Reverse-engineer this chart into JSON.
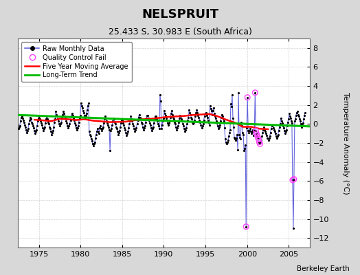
{
  "title": "NELSPRUIT",
  "subtitle": "25.433 S, 30.983 E (South Africa)",
  "ylabel": "Temperature Anomaly (°C)",
  "attribution": "Berkeley Earth",
  "ylim": [
    -13,
    9
  ],
  "yticks": [
    -12,
    -10,
    -8,
    -6,
    -4,
    -2,
    0,
    2,
    4,
    6,
    8
  ],
  "xlim": [
    1972.5,
    2007.5
  ],
  "xticks": [
    1975,
    1980,
    1985,
    1990,
    1995,
    2000,
    2005
  ],
  "bg_color": "#d8d8d8",
  "plot_bg_color": "#ffffff",
  "grid_color": "#c8c8c8",
  "raw_color": "#6666dd",
  "raw_dot_color": "#000000",
  "qc_fail_color": "#ff44ff",
  "moving_avg_color": "#ff0000",
  "trend_color": "#00bb00",
  "raw_monthly": [
    [
      1972.042,
      0.7
    ],
    [
      1972.125,
      0.4
    ],
    [
      1972.208,
      0.3
    ],
    [
      1972.292,
      0.0
    ],
    [
      1972.375,
      -0.1
    ],
    [
      1972.458,
      -0.5
    ],
    [
      1972.542,
      -0.5
    ],
    [
      1972.625,
      -0.3
    ],
    [
      1972.708,
      -0.2
    ],
    [
      1972.792,
      0.3
    ],
    [
      1972.875,
      0.7
    ],
    [
      1972.958,
      0.8
    ],
    [
      1973.042,
      0.6
    ],
    [
      1973.125,
      0.4
    ],
    [
      1973.208,
      0.2
    ],
    [
      1973.292,
      -0.1
    ],
    [
      1973.375,
      -0.3
    ],
    [
      1973.458,
      -0.6
    ],
    [
      1973.542,
      -0.9
    ],
    [
      1973.625,
      -0.7
    ],
    [
      1973.708,
      -0.5
    ],
    [
      1973.792,
      0.0
    ],
    [
      1973.875,
      0.4
    ],
    [
      1973.958,
      0.7
    ],
    [
      1974.042,
      0.5
    ],
    [
      1974.125,
      0.2
    ],
    [
      1974.208,
      0.0
    ],
    [
      1974.292,
      -0.2
    ],
    [
      1974.375,
      -0.4
    ],
    [
      1974.458,
      -0.7
    ],
    [
      1974.542,
      -1.0
    ],
    [
      1974.625,
      -0.8
    ],
    [
      1974.708,
      -0.6
    ],
    [
      1974.792,
      -0.2
    ],
    [
      1974.875,
      0.3
    ],
    [
      1974.958,
      0.6
    ],
    [
      1975.042,
      0.8
    ],
    [
      1975.125,
      0.5
    ],
    [
      1975.208,
      0.3
    ],
    [
      1975.292,
      0.1
    ],
    [
      1975.375,
      -0.1
    ],
    [
      1975.458,
      -0.4
    ],
    [
      1975.542,
      -0.7
    ],
    [
      1975.625,
      -0.5
    ],
    [
      1975.708,
      -0.3
    ],
    [
      1975.792,
      0.1
    ],
    [
      1975.875,
      0.5
    ],
    [
      1975.958,
      0.8
    ],
    [
      1976.042,
      0.5
    ],
    [
      1976.125,
      0.2
    ],
    [
      1976.208,
      0.0
    ],
    [
      1976.292,
      -0.3
    ],
    [
      1976.375,
      -0.5
    ],
    [
      1976.458,
      -0.8
    ],
    [
      1976.542,
      -1.1
    ],
    [
      1976.625,
      -0.9
    ],
    [
      1976.708,
      -0.7
    ],
    [
      1976.792,
      -0.3
    ],
    [
      1976.875,
      0.2
    ],
    [
      1976.958,
      0.5
    ],
    [
      1977.042,
      1.3
    ],
    [
      1977.125,
      1.0
    ],
    [
      1977.208,
      0.8
    ],
    [
      1977.292,
      0.5
    ],
    [
      1977.375,
      0.3
    ],
    [
      1977.458,
      0.0
    ],
    [
      1977.542,
      -0.2
    ],
    [
      1977.625,
      0.0
    ],
    [
      1977.708,
      0.2
    ],
    [
      1977.792,
      0.6
    ],
    [
      1977.875,
      1.0
    ],
    [
      1977.958,
      1.3
    ],
    [
      1978.042,
      1.1
    ],
    [
      1978.125,
      0.8
    ],
    [
      1978.208,
      0.6
    ],
    [
      1978.292,
      0.3
    ],
    [
      1978.375,
      0.1
    ],
    [
      1978.458,
      -0.2
    ],
    [
      1978.542,
      -0.4
    ],
    [
      1978.625,
      -0.2
    ],
    [
      1978.708,
      0.0
    ],
    [
      1978.792,
      0.4
    ],
    [
      1978.875,
      0.8
    ],
    [
      1978.958,
      1.1
    ],
    [
      1979.042,
      0.9
    ],
    [
      1979.125,
      0.6
    ],
    [
      1979.208,
      0.4
    ],
    [
      1979.292,
      0.1
    ],
    [
      1979.375,
      -0.1
    ],
    [
      1979.458,
      -0.4
    ],
    [
      1979.542,
      -0.6
    ],
    [
      1979.625,
      -0.4
    ],
    [
      1979.708,
      -0.2
    ],
    [
      1979.792,
      0.2
    ],
    [
      1979.875,
      0.6
    ],
    [
      1979.958,
      0.9
    ],
    [
      1980.042,
      2.2
    ],
    [
      1980.125,
      1.9
    ],
    [
      1980.208,
      1.7
    ],
    [
      1980.292,
      1.4
    ],
    [
      1980.375,
      1.2
    ],
    [
      1980.458,
      0.9
    ],
    [
      1980.542,
      0.7
    ],
    [
      1980.625,
      0.9
    ],
    [
      1980.708,
      1.1
    ],
    [
      1980.792,
      1.5
    ],
    [
      1980.875,
      1.9
    ],
    [
      1980.958,
      2.2
    ],
    [
      1981.042,
      -0.8
    ],
    [
      1981.125,
      -1.1
    ],
    [
      1981.208,
      -1.3
    ],
    [
      1981.292,
      -1.6
    ],
    [
      1981.375,
      -1.8
    ],
    [
      1981.458,
      -2.1
    ],
    [
      1981.542,
      -2.3
    ],
    [
      1981.625,
      -2.1
    ],
    [
      1981.708,
      -1.9
    ],
    [
      1981.792,
      -1.5
    ],
    [
      1981.875,
      -1.1
    ],
    [
      1981.958,
      -0.8
    ],
    [
      1982.042,
      -0.5
    ],
    [
      1982.125,
      -0.8
    ],
    [
      1982.208,
      -1.0
    ],
    [
      1982.292,
      -0.4
    ],
    [
      1982.375,
      -0.2
    ],
    [
      1982.458,
      -0.5
    ],
    [
      1982.542,
      -0.7
    ],
    [
      1982.625,
      -0.5
    ],
    [
      1982.708,
      -0.3
    ],
    [
      1982.792,
      0.1
    ],
    [
      1982.875,
      0.5
    ],
    [
      1982.958,
      0.8
    ],
    [
      1983.042,
      0.6
    ],
    [
      1983.125,
      0.3
    ],
    [
      1983.208,
      0.1
    ],
    [
      1983.292,
      -0.1
    ],
    [
      1983.375,
      -0.3
    ],
    [
      1983.458,
      -0.6
    ],
    [
      1983.542,
      -2.8
    ],
    [
      1983.625,
      -0.7
    ],
    [
      1983.708,
      -0.5
    ],
    [
      1983.792,
      -0.1
    ],
    [
      1983.875,
      0.3
    ],
    [
      1983.958,
      0.6
    ],
    [
      1984.042,
      0.5
    ],
    [
      1984.125,
      0.2
    ],
    [
      1984.208,
      0.0
    ],
    [
      1984.292,
      -0.3
    ],
    [
      1984.375,
      -0.5
    ],
    [
      1984.458,
      -0.8
    ],
    [
      1984.542,
      -1.1
    ],
    [
      1984.625,
      -0.9
    ],
    [
      1984.708,
      -0.7
    ],
    [
      1984.792,
      -0.3
    ],
    [
      1984.875,
      0.1
    ],
    [
      1984.958,
      0.4
    ],
    [
      1985.042,
      0.4
    ],
    [
      1985.125,
      0.1
    ],
    [
      1985.208,
      -0.1
    ],
    [
      1985.292,
      -0.4
    ],
    [
      1985.375,
      -0.6
    ],
    [
      1985.458,
      -0.9
    ],
    [
      1985.542,
      -1.2
    ],
    [
      1985.625,
      -1.0
    ],
    [
      1985.708,
      -0.8
    ],
    [
      1985.792,
      -0.4
    ],
    [
      1985.875,
      0.0
    ],
    [
      1985.958,
      0.3
    ],
    [
      1986.042,
      0.8
    ],
    [
      1986.125,
      0.5
    ],
    [
      1986.208,
      0.3
    ],
    [
      1986.292,
      0.0
    ],
    [
      1986.375,
      -0.2
    ],
    [
      1986.458,
      -0.5
    ],
    [
      1986.542,
      -0.8
    ],
    [
      1986.625,
      -0.6
    ],
    [
      1986.708,
      -0.4
    ],
    [
      1986.792,
      0.0
    ],
    [
      1986.875,
      0.4
    ],
    [
      1986.958,
      0.7
    ],
    [
      1987.042,
      1.0
    ],
    [
      1987.125,
      0.7
    ],
    [
      1987.208,
      0.5
    ],
    [
      1987.292,
      0.2
    ],
    [
      1987.375,
      0.0
    ],
    [
      1987.458,
      -0.3
    ],
    [
      1987.542,
      -0.6
    ],
    [
      1987.625,
      -0.4
    ],
    [
      1987.708,
      -0.2
    ],
    [
      1987.792,
      0.2
    ],
    [
      1987.875,
      0.6
    ],
    [
      1987.958,
      0.9
    ],
    [
      1988.042,
      0.9
    ],
    [
      1988.125,
      0.6
    ],
    [
      1988.208,
      0.4
    ],
    [
      1988.292,
      0.1
    ],
    [
      1988.375,
      -0.1
    ],
    [
      1988.458,
      -0.4
    ],
    [
      1988.542,
      -0.7
    ],
    [
      1988.625,
      -0.5
    ],
    [
      1988.708,
      -0.3
    ],
    [
      1988.792,
      0.1
    ],
    [
      1988.875,
      0.5
    ],
    [
      1988.958,
      0.8
    ],
    [
      1989.042,
      0.8
    ],
    [
      1989.125,
      0.5
    ],
    [
      1989.208,
      0.3
    ],
    [
      1989.292,
      0.0
    ],
    [
      1989.375,
      -0.2
    ],
    [
      1989.458,
      -0.5
    ],
    [
      1989.542,
      3.1
    ],
    [
      1989.625,
      2.4
    ],
    [
      1989.708,
      -0.5
    ],
    [
      1989.792,
      -0.1
    ],
    [
      1989.875,
      0.3
    ],
    [
      1989.958,
      0.6
    ],
    [
      1990.042,
      1.4
    ],
    [
      1990.125,
      1.1
    ],
    [
      1990.208,
      0.9
    ],
    [
      1990.292,
      0.6
    ],
    [
      1990.375,
      0.4
    ],
    [
      1990.458,
      0.1
    ],
    [
      1990.542,
      -0.1
    ],
    [
      1990.625,
      0.1
    ],
    [
      1990.708,
      0.3
    ],
    [
      1990.792,
      0.7
    ],
    [
      1990.875,
      1.1
    ],
    [
      1990.958,
      1.4
    ],
    [
      1991.042,
      1.0
    ],
    [
      1991.125,
      0.7
    ],
    [
      1991.208,
      0.5
    ],
    [
      1991.292,
      0.2
    ],
    [
      1991.375,
      0.0
    ],
    [
      1991.458,
      -0.3
    ],
    [
      1991.542,
      -0.6
    ],
    [
      1991.625,
      -0.4
    ],
    [
      1991.708,
      -0.2
    ],
    [
      1991.792,
      0.2
    ],
    [
      1991.875,
      0.6
    ],
    [
      1991.958,
      0.9
    ],
    [
      1992.042,
      0.8
    ],
    [
      1992.125,
      0.5
    ],
    [
      1992.208,
      0.3
    ],
    [
      1992.292,
      0.0
    ],
    [
      1992.375,
      -0.2
    ],
    [
      1992.458,
      -0.5
    ],
    [
      1992.542,
      -0.8
    ],
    [
      1992.625,
      -0.6
    ],
    [
      1992.708,
      -0.4
    ],
    [
      1992.792,
      0.0
    ],
    [
      1992.875,
      0.4
    ],
    [
      1992.958,
      0.7
    ],
    [
      1993.042,
      1.5
    ],
    [
      1993.125,
      1.2
    ],
    [
      1993.208,
      1.0
    ],
    [
      1993.292,
      0.7
    ],
    [
      1993.375,
      0.5
    ],
    [
      1993.458,
      0.2
    ],
    [
      1993.542,
      0.0
    ],
    [
      1993.625,
      0.2
    ],
    [
      1993.708,
      0.4
    ],
    [
      1993.792,
      0.8
    ],
    [
      1993.875,
      1.2
    ],
    [
      1993.958,
      1.5
    ],
    [
      1994.042,
      1.2
    ],
    [
      1994.125,
      0.9
    ],
    [
      1994.208,
      0.7
    ],
    [
      1994.292,
      0.4
    ],
    [
      1994.375,
      0.2
    ],
    [
      1994.458,
      -0.1
    ],
    [
      1994.542,
      -0.4
    ],
    [
      1994.625,
      -0.2
    ],
    [
      1994.708,
      0.0
    ],
    [
      1994.792,
      0.4
    ],
    [
      1994.875,
      0.8
    ],
    [
      1994.958,
      1.1
    ],
    [
      1995.042,
      1.2
    ],
    [
      1995.125,
      0.9
    ],
    [
      1995.208,
      0.7
    ],
    [
      1995.292,
      0.4
    ],
    [
      1995.375,
      0.2
    ],
    [
      1995.458,
      -0.1
    ],
    [
      1995.542,
      1.9
    ],
    [
      1995.625,
      1.6
    ],
    [
      1995.708,
      1.4
    ],
    [
      1995.792,
      1.0
    ],
    [
      1995.875,
      1.4
    ],
    [
      1995.958,
      1.7
    ],
    [
      1996.042,
      1.1
    ],
    [
      1996.125,
      0.8
    ],
    [
      1996.208,
      0.6
    ],
    [
      1996.292,
      0.3
    ],
    [
      1996.375,
      0.1
    ],
    [
      1996.458,
      -0.2
    ],
    [
      1996.542,
      -0.5
    ],
    [
      1996.625,
      -0.3
    ],
    [
      1996.708,
      -0.1
    ],
    [
      1996.792,
      0.3
    ],
    [
      1996.875,
      0.7
    ],
    [
      1996.958,
      1.0
    ],
    [
      1997.042,
      0.8
    ],
    [
      1997.125,
      0.5
    ],
    [
      1997.208,
      0.3
    ],
    [
      1997.292,
      -0.4
    ],
    [
      1997.375,
      -1.6
    ],
    [
      1997.458,
      -1.9
    ],
    [
      1997.542,
      -2.1
    ],
    [
      1997.625,
      -1.9
    ],
    [
      1997.708,
      -1.7
    ],
    [
      1997.792,
      -1.3
    ],
    [
      1997.875,
      -0.9
    ],
    [
      1997.958,
      -0.6
    ],
    [
      1998.042,
      2.1
    ],
    [
      1998.125,
      1.8
    ],
    [
      1998.208,
      3.1
    ],
    [
      1998.292,
      0.6
    ],
    [
      1998.375,
      -0.3
    ],
    [
      1998.458,
      -1.4
    ],
    [
      1998.542,
      -1.6
    ],
    [
      1998.625,
      -1.7
    ],
    [
      1998.708,
      -1.5
    ],
    [
      1998.792,
      -1.1
    ],
    [
      1998.875,
      -2.7
    ],
    [
      1998.958,
      3.3
    ],
    [
      1999.042,
      -1.1
    ],
    [
      1999.125,
      -1.4
    ],
    [
      1999.208,
      -1.6
    ],
    [
      1999.292,
      0.2
    ],
    [
      1999.375,
      -0.2
    ],
    [
      1999.458,
      -0.9
    ],
    [
      1999.542,
      -1.1
    ],
    [
      1999.625,
      -2.8
    ],
    [
      1999.708,
      -2.6
    ],
    [
      1999.792,
      -2.2
    ],
    [
      1999.875,
      -10.8
    ],
    [
      1999.958,
      -0.4
    ],
    [
      2000.042,
      2.8
    ],
    [
      2000.125,
      -0.7
    ],
    [
      2000.208,
      -0.9
    ],
    [
      2000.292,
      -0.7
    ],
    [
      2000.375,
      -0.5
    ],
    [
      2000.458,
      -0.8
    ],
    [
      2000.542,
      -1.0
    ],
    [
      2000.625,
      -0.8
    ],
    [
      2000.708,
      -0.6
    ],
    [
      2000.792,
      -1.2
    ],
    [
      2000.875,
      -0.7
    ],
    [
      2000.958,
      3.3
    ],
    [
      2001.042,
      -0.7
    ],
    [
      2001.125,
      -1.0
    ],
    [
      2001.208,
      -1.2
    ],
    [
      2001.292,
      -1.4
    ],
    [
      2001.375,
      -1.6
    ],
    [
      2001.458,
      -1.9
    ],
    [
      2001.542,
      -2.1
    ],
    [
      2001.625,
      -1.9
    ],
    [
      2001.708,
      -1.7
    ],
    [
      2001.792,
      -1.3
    ],
    [
      2001.875,
      -0.9
    ],
    [
      2001.958,
      -0.6
    ],
    [
      2002.042,
      -0.3
    ],
    [
      2002.125,
      -0.6
    ],
    [
      2002.208,
      -0.8
    ],
    [
      2002.292,
      -1.0
    ],
    [
      2002.375,
      -1.2
    ],
    [
      2002.458,
      -1.5
    ],
    [
      2002.542,
      -1.7
    ],
    [
      2002.625,
      -1.5
    ],
    [
      2002.708,
      -1.3
    ],
    [
      2002.792,
      -0.9
    ],
    [
      2002.875,
      -0.5
    ],
    [
      2002.958,
      -0.2
    ],
    [
      2003.042,
      -0.1
    ],
    [
      2003.125,
      -0.4
    ],
    [
      2003.208,
      -0.6
    ],
    [
      2003.292,
      -0.8
    ],
    [
      2003.375,
      -1.0
    ],
    [
      2003.458,
      -1.3
    ],
    [
      2003.542,
      -1.5
    ],
    [
      2003.625,
      -1.3
    ],
    [
      2003.708,
      -1.1
    ],
    [
      2003.792,
      -0.7
    ],
    [
      2003.875,
      -0.3
    ],
    [
      2003.958,
      0.0
    ],
    [
      2004.042,
      0.6
    ],
    [
      2004.125,
      0.3
    ],
    [
      2004.208,
      0.1
    ],
    [
      2004.292,
      -0.2
    ],
    [
      2004.375,
      -0.4
    ],
    [
      2004.458,
      -0.7
    ],
    [
      2004.542,
      -1.0
    ],
    [
      2004.625,
      -0.8
    ],
    [
      2004.708,
      -0.6
    ],
    [
      2004.792,
      -0.2
    ],
    [
      2004.875,
      0.2
    ],
    [
      2004.958,
      0.5
    ],
    [
      2005.042,
      1.1
    ],
    [
      2005.125,
      0.8
    ],
    [
      2005.208,
      0.6
    ],
    [
      2005.292,
      0.3
    ],
    [
      2005.375,
      0.1
    ],
    [
      2005.458,
      -5.9
    ],
    [
      2005.542,
      -11.0
    ],
    [
      2005.625,
      -5.8
    ],
    [
      2005.708,
      0.3
    ],
    [
      2005.792,
      0.5
    ],
    [
      2005.875,
      0.9
    ],
    [
      2005.958,
      1.2
    ],
    [
      2006.042,
      1.3
    ],
    [
      2006.125,
      1.0
    ],
    [
      2006.208,
      0.8
    ],
    [
      2006.292,
      0.5
    ],
    [
      2006.375,
      0.3
    ],
    [
      2006.458,
      0.0
    ],
    [
      2006.542,
      -0.3
    ],
    [
      2006.625,
      -0.1
    ],
    [
      2006.708,
      0.1
    ],
    [
      2006.792,
      0.5
    ],
    [
      2006.875,
      0.9
    ],
    [
      2006.958,
      1.2
    ]
  ],
  "qc_fail_points": [
    [
      1999.875,
      -10.8
    ],
    [
      2000.042,
      2.8
    ],
    [
      2000.958,
      3.3
    ],
    [
      2001.042,
      -0.7
    ],
    [
      2001.125,
      -1.0
    ],
    [
      2001.208,
      -1.2
    ],
    [
      2001.292,
      -1.4
    ],
    [
      2001.375,
      -1.6
    ],
    [
      2001.458,
      -1.9
    ],
    [
      2001.542,
      -2.1
    ],
    [
      2005.458,
      -5.9
    ],
    [
      2005.625,
      -5.8
    ]
  ],
  "moving_avg": [
    [
      1974.5,
      0.45
    ],
    [
      1975.5,
      0.38
    ],
    [
      1976.5,
      0.3
    ],
    [
      1977.5,
      0.55
    ],
    [
      1978.5,
      0.5
    ],
    [
      1979.5,
      0.42
    ],
    [
      1980.5,
      0.5
    ],
    [
      1981.5,
      0.35
    ],
    [
      1982.5,
      0.28
    ],
    [
      1983.5,
      0.2
    ],
    [
      1984.5,
      0.22
    ],
    [
      1985.5,
      0.25
    ],
    [
      1986.5,
      0.4
    ],
    [
      1987.5,
      0.5
    ],
    [
      1988.5,
      0.55
    ],
    [
      1989.5,
      0.65
    ],
    [
      1990.5,
      0.75
    ],
    [
      1991.5,
      0.8
    ],
    [
      1992.5,
      0.85
    ],
    [
      1993.5,
      0.95
    ],
    [
      1994.5,
      1.0
    ],
    [
      1995.5,
      1.05
    ],
    [
      1996.5,
      0.8
    ],
    [
      1997.5,
      0.45
    ],
    [
      1998.5,
      0.15
    ],
    [
      1999.5,
      -0.3
    ],
    [
      2000.5,
      -0.3
    ],
    [
      2001.5,
      -0.5
    ],
    [
      2002.5,
      -0.55
    ]
  ],
  "trend_x": [
    1972.5,
    2007.5
  ],
  "trend_y": [
    0.95,
    -0.25
  ]
}
